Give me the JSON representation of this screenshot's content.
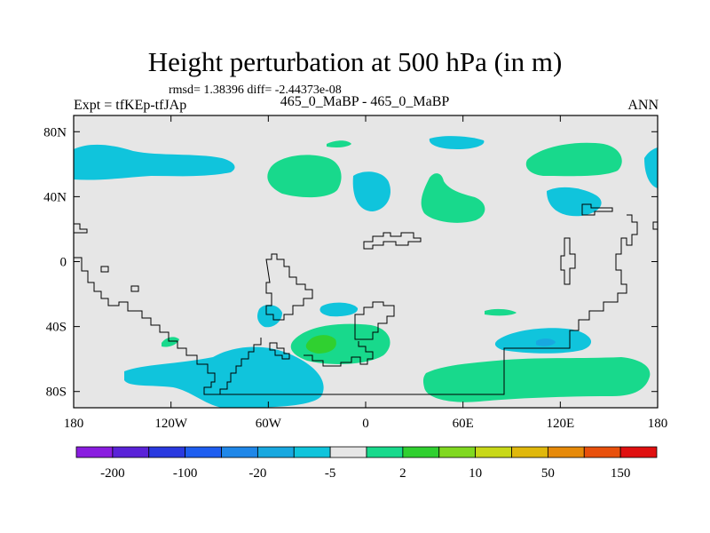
{
  "title": "Height perturbation at 500 hPa (in m)",
  "stats": "rmsd= 1.38396 diff= -2.44373e-08",
  "left_label": "Expt = tfKEp-tfJAp",
  "center_label": "465_0_MaBP - 465_0_MaBP",
  "right_label": "ANN",
  "map": {
    "lon_range": [
      -180,
      180
    ],
    "lat_range": [
      -90,
      90
    ],
    "background_color": "#e6e6e6",
    "x_ticks": [
      {
        "lon": -180,
        "label": "180"
      },
      {
        "lon": -120,
        "label": "120W"
      },
      {
        "lon": -60,
        "label": "60W"
      },
      {
        "lon": 0,
        "label": "0"
      },
      {
        "lon": 60,
        "label": "60E"
      },
      {
        "lon": 120,
        "label": "120E"
      },
      {
        "lon": 180,
        "label": "180"
      }
    ],
    "y_ticks": [
      {
        "lat": 80,
        "label": "80N"
      },
      {
        "lat": 40,
        "label": "40N"
      },
      {
        "lat": 0,
        "label": "0"
      },
      {
        "lat": -40,
        "label": "40S"
      },
      {
        "lat": -80,
        "label": "80S"
      }
    ]
  },
  "colorbar": {
    "colors": [
      "#8a1de0",
      "#5a22d8",
      "#2a3ae0",
      "#1e5ef0",
      "#1f87e8",
      "#18a8e0",
      "#10c4dc",
      "#e6e6e6",
      "#18d98c",
      "#30d030",
      "#80d820",
      "#c8d818",
      "#e0b80c",
      "#e68a0a",
      "#e8500c",
      "#e01010"
    ],
    "labels": [
      {
        "boundary": 1,
        "text": "-200"
      },
      {
        "boundary": 3,
        "text": "-100"
      },
      {
        "boundary": 5,
        "text": "-20"
      },
      {
        "boundary": 7,
        "text": "-5"
      },
      {
        "boundary": 9,
        "text": "2"
      },
      {
        "boundary": 11,
        "text": "10"
      },
      {
        "boundary": 13,
        "text": "50"
      },
      {
        "boundary": 15,
        "text": "150"
      }
    ]
  }
}
